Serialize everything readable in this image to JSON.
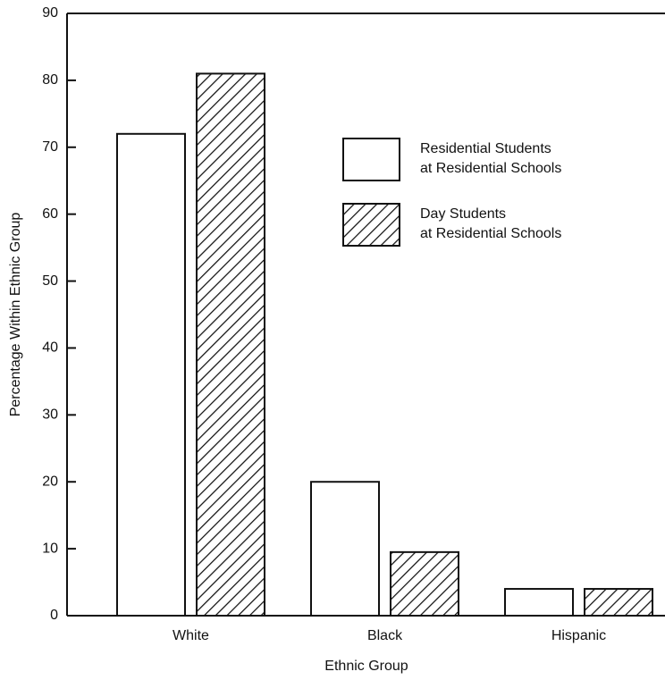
{
  "chart_data": {
    "type": "bar",
    "x_label": "Ethnic Group",
    "y_label": "Percentage Within Ethnic Group",
    "categories": [
      "White",
      "Black",
      "Hispanic"
    ],
    "series": [
      {
        "name": "Residential Students\nat Residential Schools",
        "color": "#ffffff",
        "hatch": false,
        "values": [
          72,
          20,
          4
        ]
      },
      {
        "name": "Day Students\nat Residential Schools",
        "color": "#ffffff",
        "hatch": true,
        "values": [
          81,
          9.5,
          4
        ]
      }
    ],
    "ylim": [
      0,
      90
    ],
    "yticks": [
      0,
      10,
      20,
      30,
      40,
      50,
      60,
      70,
      80,
      90
    ],
    "grid": false
  }
}
